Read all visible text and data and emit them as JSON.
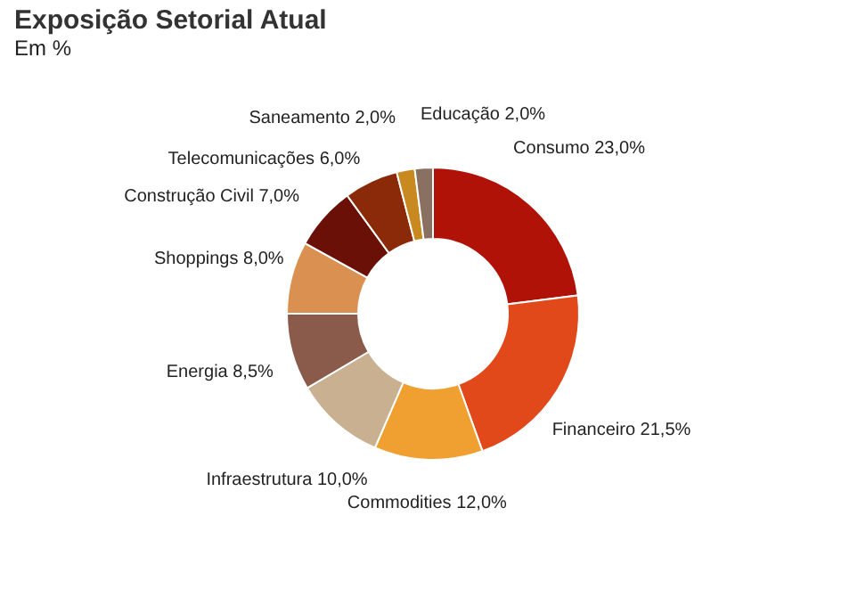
{
  "chart_data": {
    "type": "donut",
    "title": "Exposição Setorial Atual",
    "subtitle": "Em %",
    "categories": [
      "Consumo",
      "Financeiro",
      "Commodities",
      "Infraestrutura",
      "Energia",
      "Shoppings",
      "Construção Civil",
      "Telecomunicações",
      "Saneamento",
      "Educação"
    ],
    "values": [
      23.0,
      21.5,
      12.0,
      10.0,
      8.5,
      8.0,
      7.0,
      6.0,
      2.0,
      2.0
    ],
    "value_labels": [
      "23,0%",
      "21,5%",
      "12,0%",
      "10,0%",
      "8,5%",
      "8,0%",
      "7,0%",
      "6,0%",
      "2,0%",
      "2,0%"
    ],
    "colors": [
      "#b01208",
      "#e2491a",
      "#f0a030",
      "#c8b090",
      "#8a5a4a",
      "#d99050",
      "#6a1006",
      "#8a2a08",
      "#c88a20",
      "#8a7060"
    ]
  }
}
